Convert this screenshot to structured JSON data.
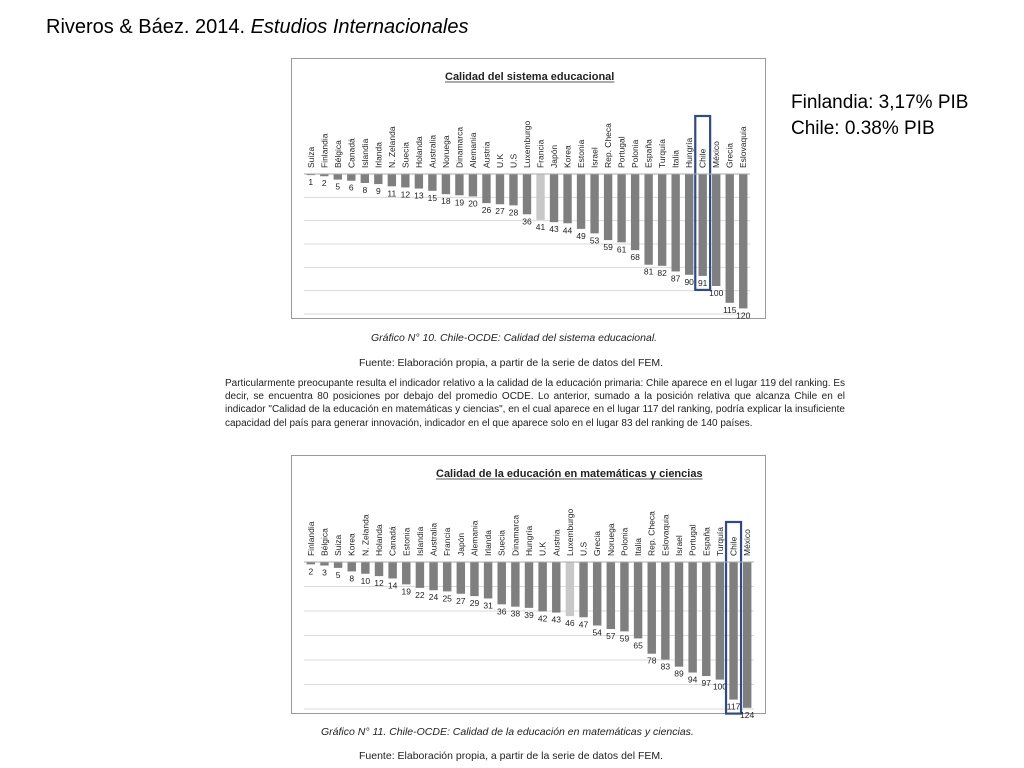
{
  "header": {
    "title_authors": "Riveros & Báez. 2014.",
    "title_journal": "Estudios Internacionales"
  },
  "side_note": {
    "line1": "Finlandia: 3,17% PIB",
    "line2": "Chile: 0.38% PIB"
  },
  "figure1": {
    "caption": "Gráfico N° 10. Chile-OCDE: Calidad del sistema educacional.",
    "source": "Fuente: Elaboración propia, a partir de la serie de datos del FEM."
  },
  "paragraph": "Particularmente preocupante resulta el indicador relativo a la calidad de la educación primaria: Chile aparece en el lugar 119 del ranking. Es decir, se encuentra 80 posiciones por debajo del promedio OCDE. Lo anterior, sumado a la posición relativa que alcanza Chile en el indicador \"Calidad de la educación en matemáticas y ciencias\", en el cual aparece en el lugar 117 del ranking, podría explicar la insuficiente capacidad del país para generar innovación, indicador en el que aparece solo en el lugar 83 del ranking de 140 países.",
  "figure2": {
    "caption": "Gráfico N° 11. Chile-OCDE: Calidad de la educación en matemáticas y ciencias.",
    "source": "Fuente: Elaboración propia, a partir de la serie de datos del FEM."
  },
  "colors": {
    "bar": "#7f7f7f",
    "bar_highlight": "#c8c8c8",
    "highlight_box": "#2e4a8c",
    "grid": "#d9d9d9"
  },
  "chart_data": [
    {
      "type": "bar",
      "title": "Calidad del sistema educacional",
      "categories": [
        "Suiza",
        "Finlandia",
        "Bélgica",
        "Canadá",
        "Islandia",
        "Irlanda",
        "N. Zelanda",
        "Suecia",
        "Holanda",
        "Australia",
        "Noruega",
        "Dinamarca",
        "Alemania",
        "Austria",
        "U.K",
        "U.S",
        "Luxemburgo",
        "Francia",
        "Japón",
        "Korea",
        "Estonia",
        "Israel",
        "Rep. Checa",
        "Portugal",
        "Polonia",
        "España",
        "Turquía",
        "Italia",
        "Hungría",
        "Chile",
        "México",
        "Grecia",
        "Eslovaquia"
      ],
      "values": [
        1,
        2,
        5,
        6,
        8,
        9,
        11,
        12,
        13,
        15,
        18,
        19,
        20,
        26,
        27,
        28,
        36,
        41,
        43,
        44,
        49,
        53,
        59,
        61,
        68,
        81,
        82,
        87,
        90,
        91,
        100,
        115,
        120
      ],
      "highlight_light": [
        "Francia"
      ],
      "highlight_box": "Chile",
      "orientation": "inverted",
      "ylim": [
        0,
        125
      ],
      "grid": true
    },
    {
      "type": "bar",
      "title": "Calidad de la educación en matemáticas y ciencias",
      "categories": [
        "Finlandia",
        "Bélgica",
        "Suiza",
        "Korea",
        "N. Zelanda",
        "Holanda",
        "Canadá",
        "Estonia",
        "Islandia",
        "Australia",
        "Francia",
        "Japón",
        "Alemania",
        "Irlanda",
        "Suecia",
        "Dinamarca",
        "Hungría",
        "U.K",
        "Austria",
        "Luxemburgo",
        "U.S",
        "Grecia",
        "Noruega",
        "Polonia",
        "Italia",
        "Rep. Checa",
        "Eslovaquia",
        "Israel",
        "Portugal",
        "España",
        "Turquía",
        "Chile",
        "México"
      ],
      "values": [
        2,
        3,
        5,
        8,
        10,
        12,
        14,
        19,
        22,
        24,
        25,
        27,
        29,
        31,
        36,
        38,
        39,
        42,
        43,
        46,
        47,
        54,
        57,
        59,
        65,
        78,
        83,
        89,
        94,
        97,
        100,
        117,
        124
      ],
      "highlight_light": [
        "Luxemburgo"
      ],
      "highlight_box": "Chile",
      "orientation": "inverted",
      "ylim": [
        0,
        125
      ],
      "grid": true
    }
  ]
}
